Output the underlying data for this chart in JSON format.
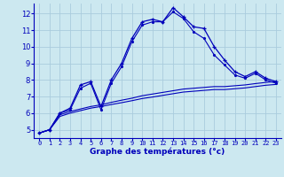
{
  "xlabel": "Graphe des températures (°c)",
  "bg_color": "#cce8f0",
  "grid_color": "#aaccdd",
  "line_color": "#0000bb",
  "xlim": [
    -0.5,
    23.5
  ],
  "ylim": [
    4.5,
    12.6
  ],
  "xtick_labels": [
    "0",
    "1",
    "2",
    "3",
    "4",
    "5",
    "6",
    "7",
    "8",
    "9",
    "10",
    "11",
    "12",
    "13",
    "14",
    "15",
    "16",
    "17",
    "18",
    "19",
    "20",
    "21",
    "22",
    "23"
  ],
  "ytick_labels": [
    "5",
    "6",
    "7",
    "8",
    "9",
    "10",
    "11",
    "12"
  ],
  "ytick_vals": [
    5,
    6,
    7,
    8,
    9,
    10,
    11,
    12
  ],
  "line1_x": [
    0,
    1,
    2,
    3,
    4,
    5,
    6,
    7,
    8,
    9,
    10,
    11,
    12,
    13,
    14,
    15,
    16,
    17,
    18,
    19,
    20,
    21,
    22,
    23
  ],
  "line1_y": [
    4.8,
    5.0,
    6.0,
    6.3,
    7.7,
    7.9,
    6.4,
    8.0,
    9.0,
    10.5,
    11.5,
    11.65,
    11.5,
    12.35,
    11.8,
    11.2,
    11.1,
    10.0,
    9.2,
    8.5,
    8.2,
    8.5,
    8.1,
    7.9
  ],
  "line2_x": [
    0,
    1,
    2,
    3,
    4,
    5,
    6,
    7,
    8,
    9,
    10,
    11,
    12,
    13,
    14,
    15,
    16,
    17,
    18,
    19,
    20,
    21,
    22,
    23
  ],
  "line2_y": [
    4.8,
    5.0,
    6.0,
    6.2,
    7.5,
    7.8,
    6.2,
    7.8,
    8.8,
    10.3,
    11.3,
    11.5,
    11.5,
    12.1,
    11.7,
    10.9,
    10.5,
    9.5,
    8.9,
    8.3,
    8.1,
    8.4,
    8.0,
    7.8
  ],
  "line3_x": [
    0,
    1,
    2,
    3,
    4,
    5,
    6,
    7,
    8,
    9,
    10,
    11,
    12,
    13,
    14,
    15,
    16,
    17,
    18,
    19,
    20,
    21,
    22,
    23
  ],
  "line3_y": [
    4.8,
    5.0,
    5.9,
    6.1,
    6.25,
    6.4,
    6.5,
    6.65,
    6.78,
    6.9,
    7.05,
    7.15,
    7.25,
    7.35,
    7.45,
    7.5,
    7.55,
    7.6,
    7.6,
    7.65,
    7.7,
    7.78,
    7.85,
    7.9
  ],
  "line4_x": [
    0,
    1,
    2,
    3,
    4,
    5,
    6,
    7,
    8,
    9,
    10,
    11,
    12,
    13,
    14,
    15,
    16,
    17,
    18,
    19,
    20,
    21,
    22,
    23
  ],
  "line4_y": [
    4.8,
    5.0,
    5.8,
    6.0,
    6.15,
    6.3,
    6.4,
    6.52,
    6.63,
    6.75,
    6.88,
    6.97,
    7.07,
    7.17,
    7.27,
    7.32,
    7.37,
    7.42,
    7.42,
    7.47,
    7.52,
    7.6,
    7.68,
    7.73
  ]
}
